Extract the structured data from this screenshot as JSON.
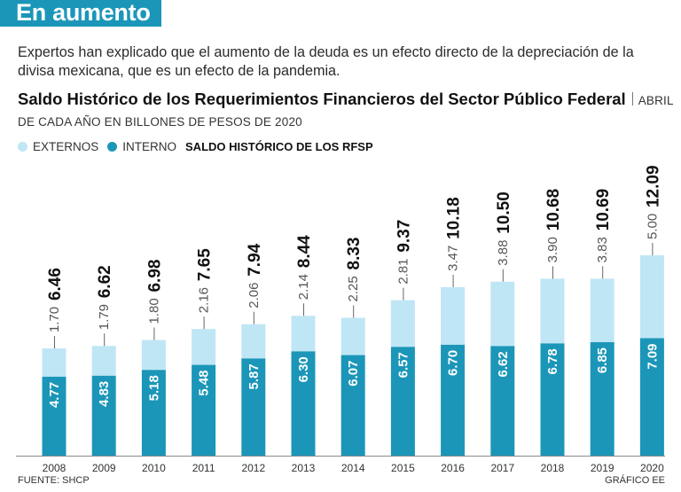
{
  "header": {
    "banner": "En aumento",
    "subtitle": "Expertos han explicado que el aumento de la deuda es un efecto directo de la depreciación de la divisa mexicana, que es un efecto de la pandemia."
  },
  "chart_data": {
    "type": "bar",
    "stacked": true,
    "title": "Saldo Histórico de los Requerimientos Financieros del Sector Público Federal",
    "units": "ABRIL DE CADA AÑO EN BILLONES DE PESOS DE 2020",
    "legend_title": "SALDO HISTÓRICO DE LOS RFSP",
    "categories": [
      "2008",
      "2009",
      "2010",
      "2011",
      "2012",
      "2013",
      "2014",
      "2015",
      "2016",
      "2017",
      "2018",
      "2019",
      "2020"
    ],
    "series": [
      {
        "name": "INTERNO",
        "color": "#1b96b8",
        "values": [
          4.77,
          4.83,
          5.18,
          5.48,
          5.87,
          6.3,
          6.07,
          6.57,
          6.7,
          6.62,
          6.78,
          6.85,
          7.09
        ],
        "labels": [
          "4.77",
          "4.83",
          "5.18",
          "5.48",
          "5.87",
          "6.30",
          "6.07",
          "6.57",
          "6.70",
          "6.62",
          "6.78",
          "6.85",
          "7.09"
        ]
      },
      {
        "name": "EXTERNOS",
        "color": "#bfe6f5",
        "values": [
          1.7,
          1.79,
          1.8,
          2.16,
          2.06,
          2.14,
          2.25,
          2.81,
          3.47,
          3.88,
          3.9,
          3.83,
          5.0
        ],
        "labels": [
          "1.70",
          "1.79",
          "1.80",
          "2.16",
          "2.06",
          "2.14",
          "2.25",
          "2.81",
          "3.47",
          "3.88",
          "3.90",
          "3.83",
          "5.00"
        ]
      }
    ],
    "totals": [
      6.46,
      6.62,
      6.98,
      7.65,
      7.94,
      8.44,
      8.33,
      9.37,
      10.18,
      10.5,
      10.68,
      10.69,
      12.09
    ],
    "total_labels": [
      "6.46",
      "6.62",
      "6.98",
      "7.65",
      "7.94",
      "8.44",
      "8.33",
      "9.37",
      "10.18",
      "10.50",
      "10.68",
      "10.69",
      "12.09"
    ],
    "ylim": [
      0,
      12.09
    ],
    "grid": false
  },
  "footer": {
    "source": "FUENTE: SHCP",
    "credit": "GRÁFICO EE"
  }
}
